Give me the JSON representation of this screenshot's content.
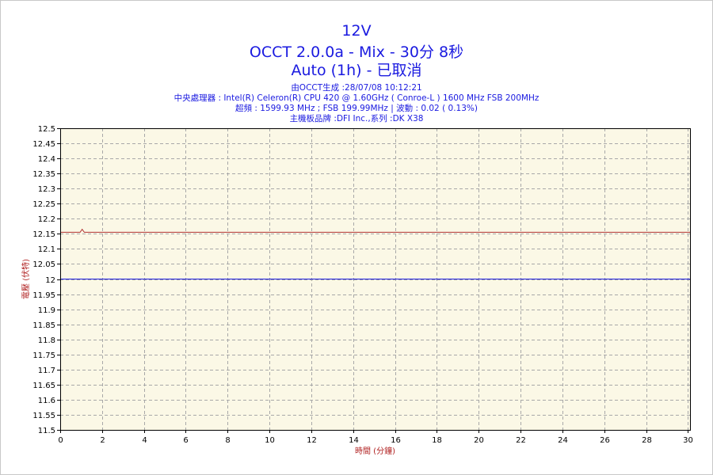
{
  "header": {
    "title1": "12V",
    "title2": "OCCT 2.0.0a - Mix - 30分 8秒",
    "title3": "Auto (1h) - 已取消",
    "info1": "由OCCT生成 :28/07/08 10:12:21",
    "info2": "中央處理器 : Intel(R) Celeron(R) CPU 420 @ 1.60GHz ( Conroe-L ) 1600 MHz FSB 200MHz",
    "info3": "超頻 : 1599.93 MHz ; FSB 199.99MHz | 波動 : 0.02 ( 0.13%)",
    "info4": "主機板品牌 :DFI Inc.,系列 :DK X38"
  },
  "chart_data": {
    "type": "line",
    "title": "12V",
    "xlabel": "時間 (分鐘)",
    "ylabel": "電壓 (伏特)",
    "xlim": [
      0,
      30.1
    ],
    "ylim": [
      11.5,
      12.5
    ],
    "xticks": [
      0,
      2,
      4,
      6,
      8,
      10,
      12,
      14,
      16,
      18,
      20,
      22,
      24,
      26,
      28,
      30
    ],
    "yticks": [
      11.5,
      11.55,
      11.6,
      11.65,
      11.7,
      11.75,
      11.8,
      11.85,
      11.9,
      11.95,
      12,
      12.05,
      12.1,
      12.15,
      12.2,
      12.25,
      12.3,
      12.35,
      12.4,
      12.45,
      12.5
    ],
    "grid": true,
    "series": [
      {
        "color": "#b03030",
        "x": [
          0,
          0.95,
          1.05,
          1.15,
          30.1
        ],
        "y": [
          12.155,
          12.155,
          12.165,
          12.155,
          12.155
        ]
      },
      {
        "color": "#1a1ae0",
        "x": [
          0,
          30.1
        ],
        "y": [
          12.0,
          12.0
        ]
      }
    ],
    "colors": {
      "plot_background": "#fbf8e6",
      "grid": "#a8a8a8",
      "axis_label": "#b02020",
      "title": "#1a1ae0"
    }
  }
}
